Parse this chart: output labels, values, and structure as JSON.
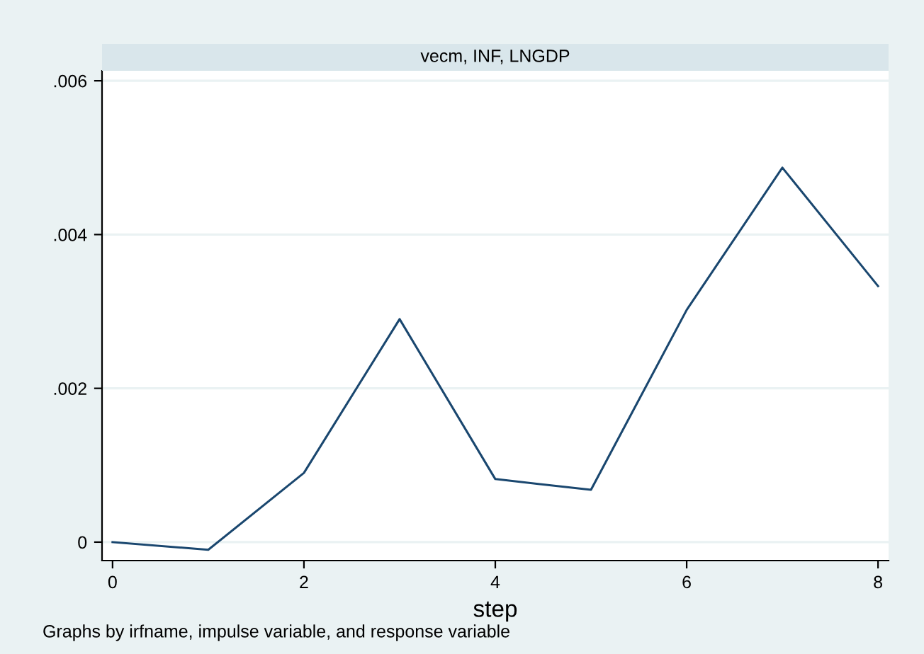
{
  "chart_data": {
    "type": "line",
    "title": "vecm, INF, LNGDP",
    "xlabel": "step",
    "x": [
      0,
      1,
      2,
      3,
      4,
      5,
      6,
      7,
      8
    ],
    "series": [
      {
        "color": "#1a476f",
        "values": [
          0,
          -0.0001,
          0.0009,
          0.0029,
          0.00082,
          0.00068,
          0.00302,
          0.00487,
          0.00333
        ]
      }
    ],
    "xlim": [
      -0.11,
      8.11
    ],
    "xticks": [
      0,
      2,
      4,
      6,
      8
    ],
    "ylim": [
      -0.00024,
      0.00613
    ],
    "yticks": [
      {
        "value": 0,
        "label": "0"
      },
      {
        "value": 0.002,
        "label": ".002"
      },
      {
        "value": 0.004,
        "label": ".004"
      },
      {
        "value": 0.006,
        "label": ".006"
      }
    ],
    "grid": "y",
    "legend": false,
    "marker": "none",
    "line_style": "solid",
    "annotations": [
      "Graphs by irfname, impulse variable, and response variable"
    ]
  }
}
